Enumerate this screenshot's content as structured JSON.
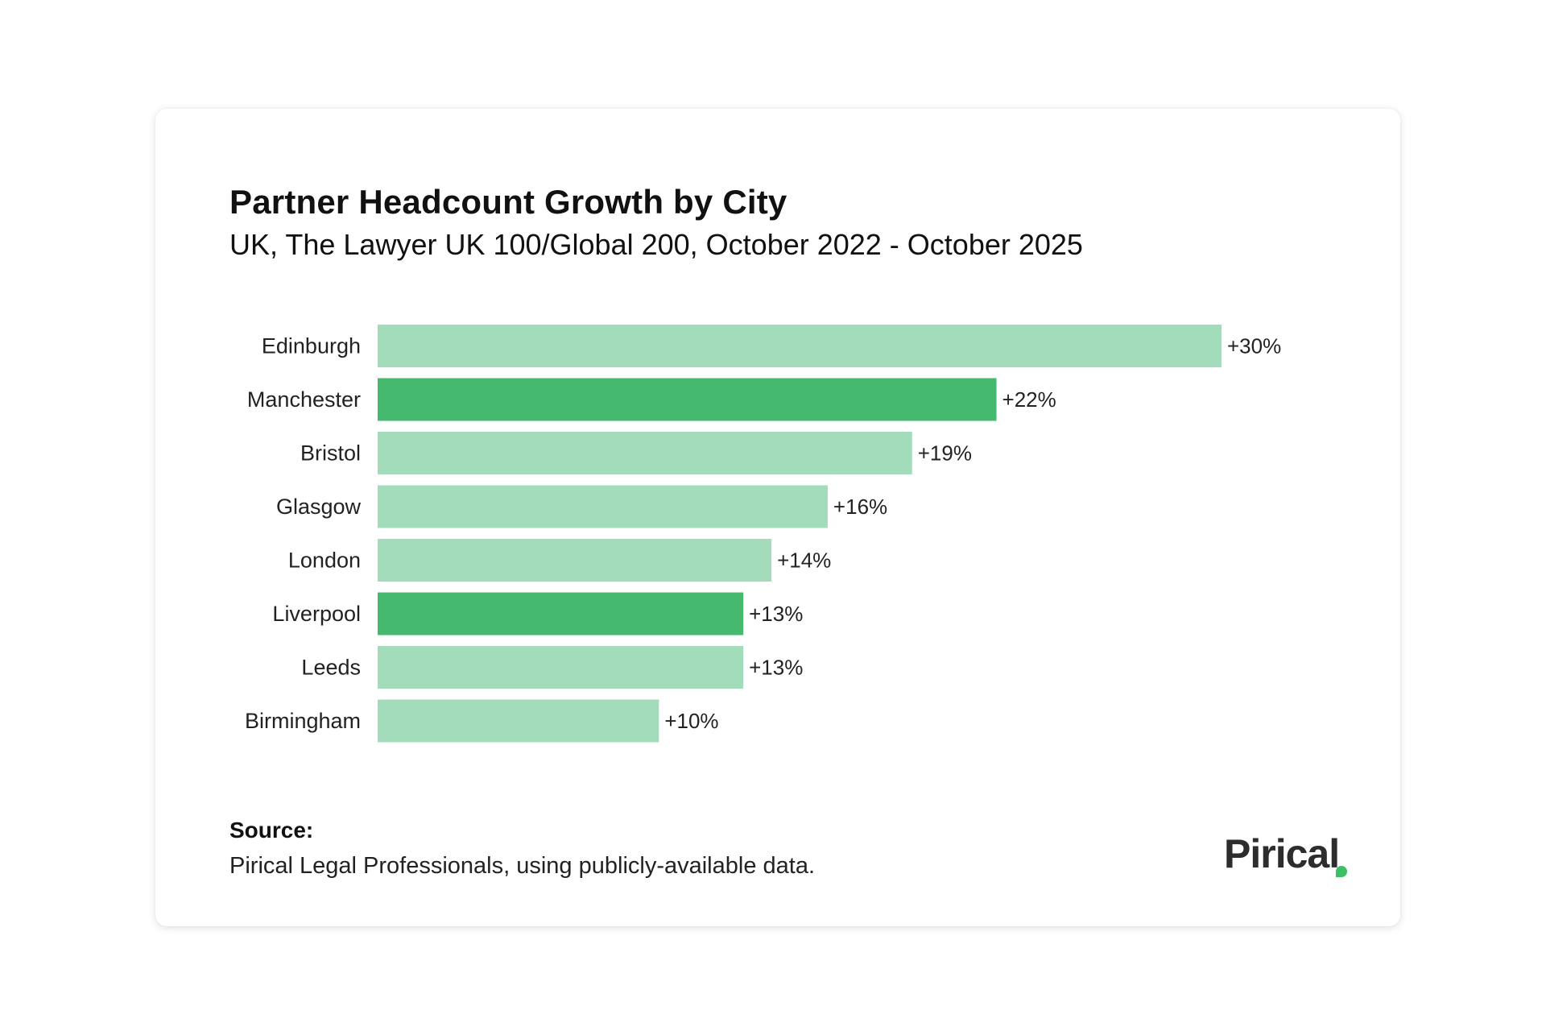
{
  "title": "Partner Headcount Growth by City",
  "subtitle": "UK, The Lawyer UK 100/Global 200, October 2022 - October 2025",
  "source": {
    "label": "Source:",
    "text": "Pirical Legal Professionals, using publicly-available data."
  },
  "logo": {
    "text": "Pirical"
  },
  "colors": {
    "highlight": "#45b96e",
    "default": "#a3dcba"
  },
  "chart_data": {
    "type": "bar",
    "orientation": "horizontal",
    "categories": [
      "Edinburgh",
      "Manchester",
      "Bristol",
      "Glasgow",
      "London",
      "Liverpool",
      "Leeds",
      "Birmingham"
    ],
    "values": [
      30,
      22,
      19,
      16,
      14,
      13,
      13,
      10
    ],
    "value_labels": [
      "+30%",
      "+22%",
      "+19%",
      "+16%",
      "+14%",
      "+13%",
      "+13%",
      "+10%"
    ],
    "highlighted": [
      false,
      true,
      false,
      false,
      false,
      true,
      false,
      false
    ],
    "xlim": [
      0,
      30
    ],
    "grid": false,
    "legend": "none"
  }
}
